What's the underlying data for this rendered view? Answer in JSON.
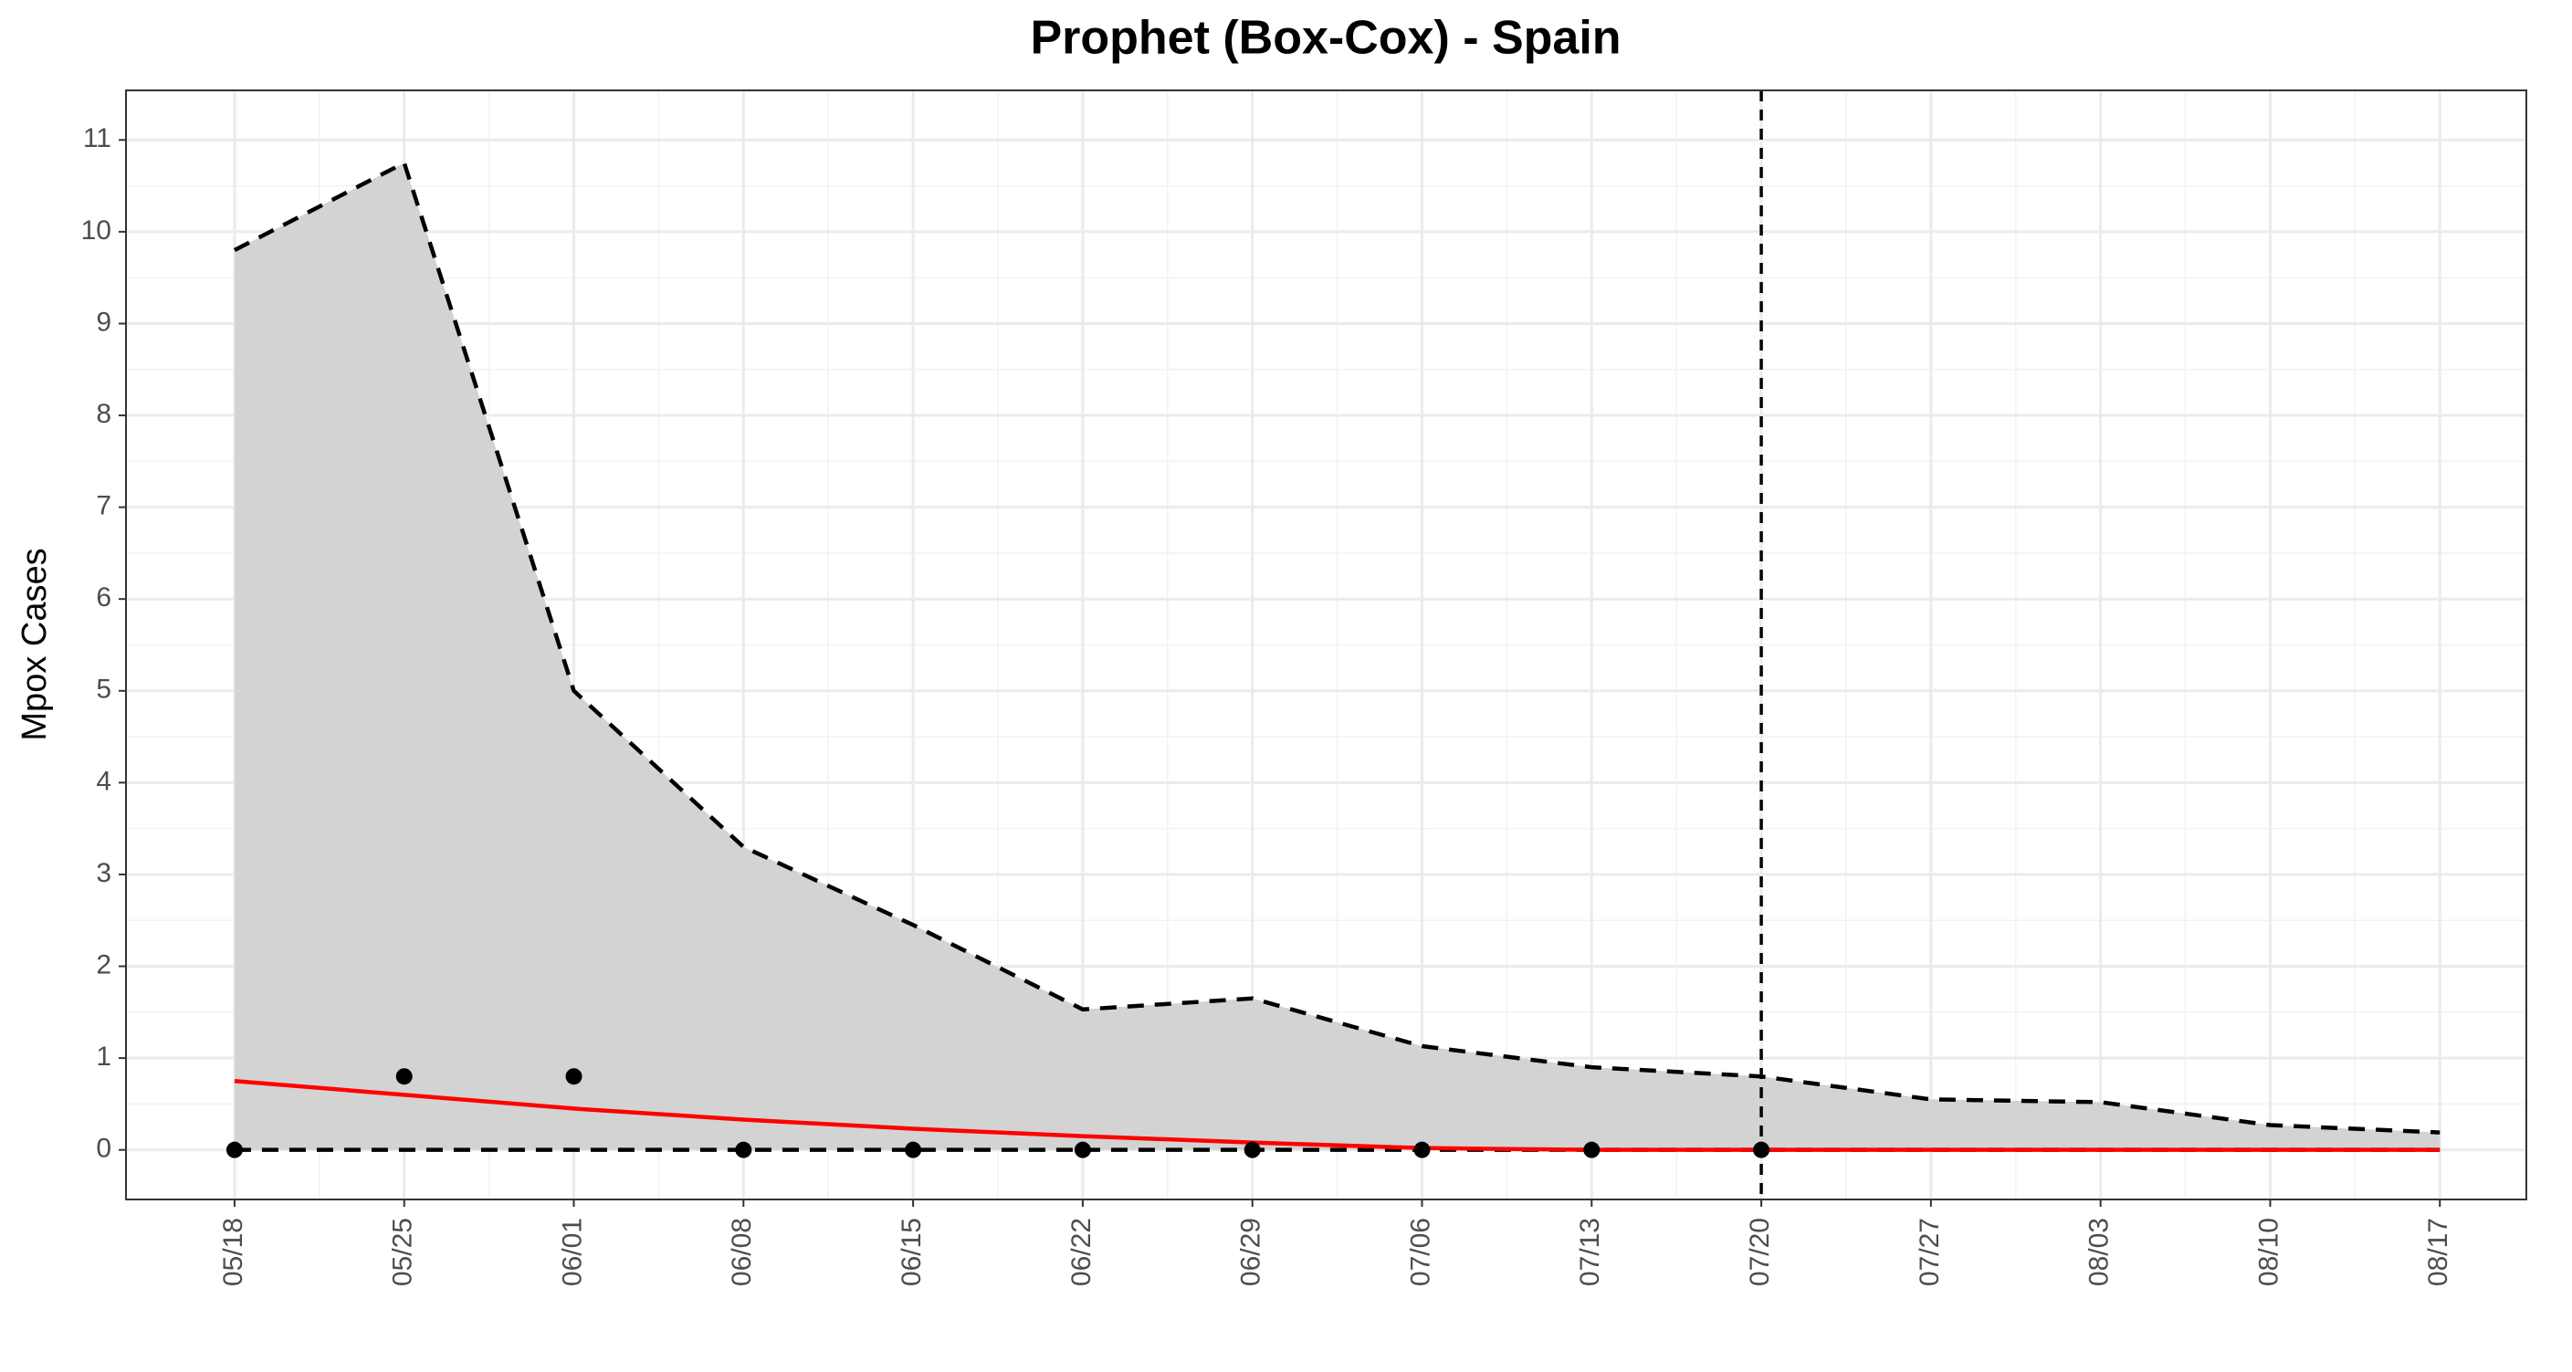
{
  "chart_data": {
    "type": "line",
    "title": "Prophet (Box-Cox) - Spain",
    "y_label": "Mpox Cases",
    "categories": [
      "05/18",
      "05/25",
      "06/01",
      "06/08",
      "06/15",
      "06/22",
      "06/29",
      "07/06",
      "07/13",
      "07/20",
      "07/27",
      "08/03",
      "08/10",
      "08/17"
    ],
    "series": [
      {
        "name": "upper",
        "color": "#000000",
        "values": [
          9.8,
          10.75,
          5.0,
          3.3,
          2.45,
          1.53,
          1.65,
          1.13,
          0.9,
          0.8,
          0.55,
          0.52,
          0.27,
          0.19
        ]
      },
      {
        "name": "lower",
        "color": "#000000",
        "values": [
          0,
          0,
          0,
          0,
          0,
          0,
          0,
          0,
          0,
          0,
          0,
          0,
          0,
          0
        ]
      },
      {
        "name": "forecast",
        "color": "#ff0000",
        "values": [
          0.75,
          0.6,
          0.45,
          0.33,
          0.23,
          0.15,
          0.08,
          0.02,
          0,
          0,
          0,
          0,
          0,
          0
        ]
      },
      {
        "name": "observed",
        "color": "#000000",
        "values": [
          0,
          0.8,
          0.8,
          0,
          0,
          0,
          0,
          0,
          0,
          0,
          null,
          null,
          null,
          null
        ]
      }
    ],
    "band_color": "#d3d3d3",
    "vline": "07/20",
    "ylim": [
      -0.54,
      11.54
    ],
    "yticks": [
      0,
      1,
      2,
      3,
      4,
      5,
      6,
      7,
      8,
      9,
      10,
      11
    ],
    "grid": true
  }
}
